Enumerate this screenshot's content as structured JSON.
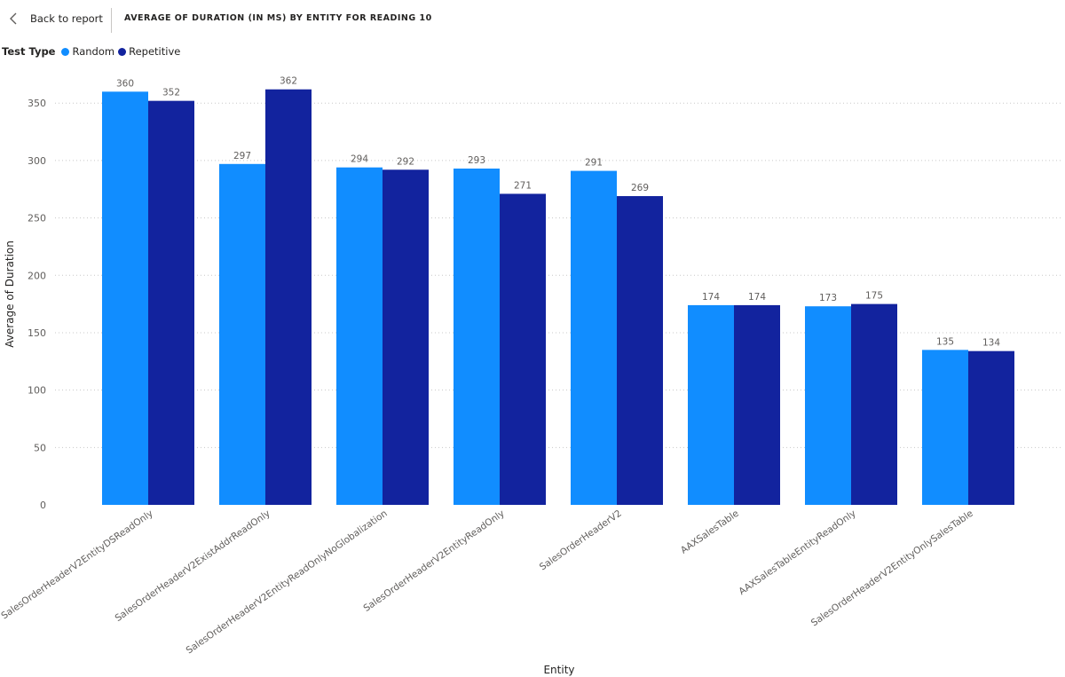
{
  "header": {
    "back_label": "Back to report",
    "title": "AVERAGE OF DURATION (IN MS) BY ENTITY FOR READING 10"
  },
  "legend": {
    "title": "Test Type",
    "items": [
      {
        "label": "Random",
        "color": "#118DFF"
      },
      {
        "label": "Repetitive",
        "color": "#12239E"
      }
    ]
  },
  "icons": {
    "back": "chevron-left-icon"
  },
  "chart_data": {
    "type": "bar",
    "xlabel": "Entity",
    "ylabel": "Average of Duration",
    "ylim": [
      0,
      375
    ],
    "yticks": [
      0,
      50,
      100,
      150,
      200,
      250,
      300,
      350
    ],
    "grid": true,
    "legend_placement": "top-left",
    "categories": [
      "SalesOrderHeaderV2EntityDSReadOnly",
      "SalesOrderHeaderV2ExistAddrReadOnly",
      "SalesOrderHeaderV2EntityReadOnlyNoGlobalization",
      "SalesOrderHeaderV2EntityReadOnly",
      "SalesOrderHeaderV2",
      "AAXSalesTable",
      "AAXSalesTableEntityReadOnly",
      "SalesOrderHeaderV2EntityOnlySalesTable"
    ],
    "series": [
      {
        "name": "Random",
        "color": "#118DFF",
        "values": [
          360,
          297,
          294,
          293,
          291,
          174,
          173,
          135
        ]
      },
      {
        "name": "Repetitive",
        "color": "#12239E",
        "values": [
          352,
          362,
          292,
          271,
          269,
          174,
          175,
          134
        ]
      }
    ]
  }
}
